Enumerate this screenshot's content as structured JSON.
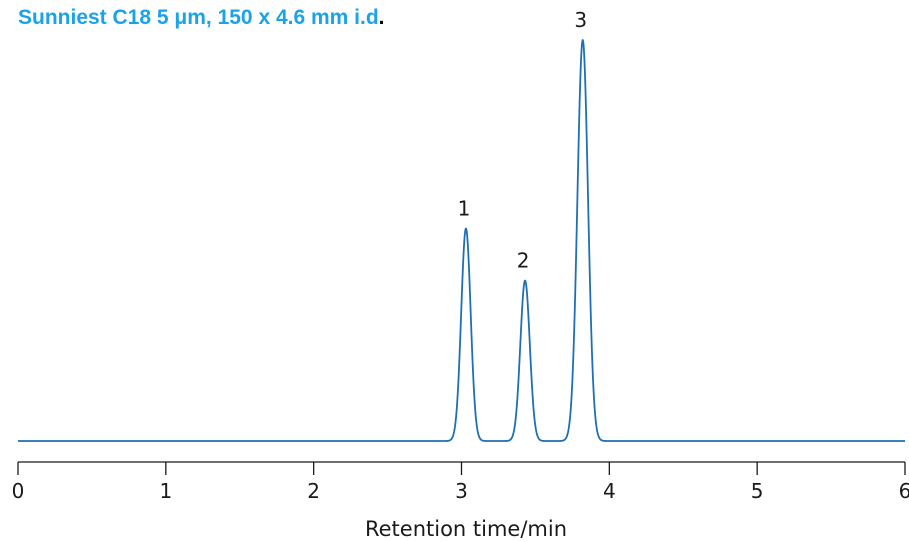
{
  "chart_data": {
    "type": "line",
    "title": "Sunniest C18  5 μm, 150 x 4.6 mm i.d",
    "title_suffix": ".",
    "xlabel": "Retention time/min",
    "ylabel": "",
    "xlim": [
      0,
      6
    ],
    "ylim": [
      0,
      1
    ],
    "xticks": [
      "0",
      "1",
      "2",
      "3",
      "4",
      "5",
      "6"
    ],
    "grid": false,
    "line_color": "#1f6fb4",
    "title_color": "#1aa3e8",
    "baseline": 0.0,
    "peaks": [
      {
        "label": "1",
        "x": 3.03,
        "height": 0.53,
        "width": 0.032
      },
      {
        "label": "2",
        "x": 3.43,
        "height": 0.4,
        "width": 0.032
      },
      {
        "label": "3",
        "x": 3.82,
        "height": 1.0,
        "width": 0.036
      }
    ]
  }
}
